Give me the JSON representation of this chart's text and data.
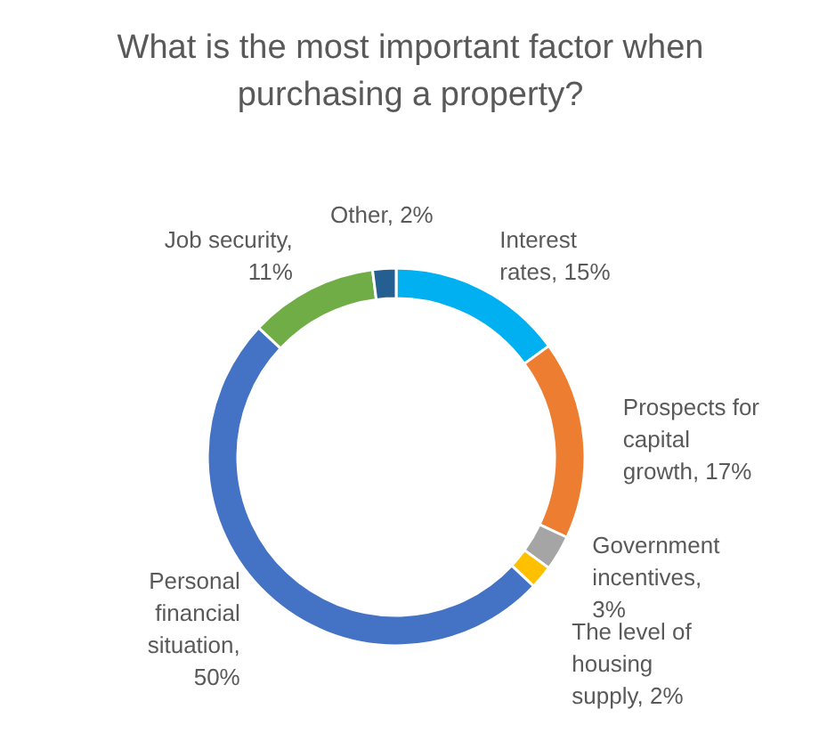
{
  "chart_data": {
    "type": "donut",
    "title": "What is the most important factor when purchasing a property?",
    "categories": [
      "Interest rates, 15%",
      "Prospects for capital growth, 17%",
      "Government incentives, 3%",
      "The level of housing supply, 2%",
      "Personal financial situation, 50%",
      "Job security, 11%",
      "Other, 2%"
    ],
    "values": [
      15,
      17,
      3,
      2,
      50,
      11,
      2
    ],
    "colors": [
      "#00b0f0",
      "#ed7d31",
      "#a5a5a5",
      "#ffc000",
      "#4472c4",
      "#70ad47",
      "#255e91"
    ]
  }
}
